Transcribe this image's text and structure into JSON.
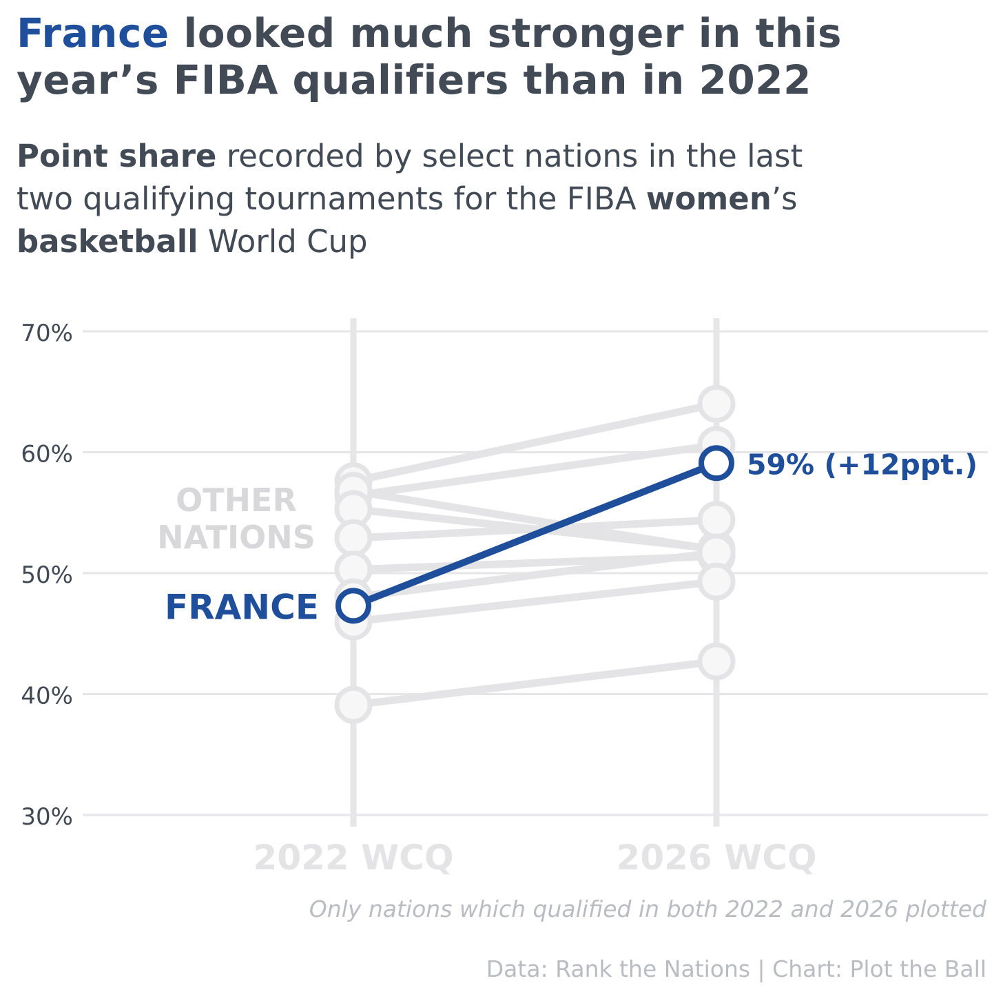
{
  "header": {
    "title_highlight": "France",
    "title_rest_1": " looked much stronger in this",
    "title_rest_2": "year’s FIBA qualifiers than in 2022",
    "subtitle_bold_1": "Point share",
    "subtitle_text_1": " recorded by select nations in the last",
    "subtitle_text_2": "two qualifying tournaments for the FIBA ",
    "subtitle_bold_2": "women",
    "subtitle_text_3": "’s",
    "subtitle_bold_3": "basketball",
    "subtitle_text_4": " World Cup"
  },
  "colors": {
    "highlight": "#1f4e9a",
    "other": "#e4e4e6",
    "grid": "#e6e6e8",
    "text": "#424a55",
    "muted": "#b9bcc1",
    "marker_fill": "#f7f7f8"
  },
  "chart_data": {
    "type": "slope",
    "categories": [
      "2022 WCQ",
      "2026 WCQ"
    ],
    "y_unit": "%",
    "ylim": [
      30,
      70
    ],
    "yticks": [
      30,
      40,
      50,
      60,
      70
    ],
    "ytick_labels": [
      "30%",
      "40%",
      "50%",
      "60%",
      "70%"
    ],
    "grid": true,
    "highlight_series": {
      "name": "FRANCE",
      "values": [
        47.3,
        59.1
      ],
      "end_label": "59% (+12ppt.)"
    },
    "other_label": "OTHER NATIONS",
    "other_series": [
      {
        "values": [
          57.6,
          64.0
        ]
      },
      {
        "values": [
          56.4,
          60.6
        ]
      },
      {
        "values": [
          56.8,
          51.9
        ]
      },
      {
        "values": [
          55.3,
          52.0
        ]
      },
      {
        "values": [
          52.9,
          54.4
        ]
      },
      {
        "values": [
          50.3,
          51.4
        ]
      },
      {
        "values": [
          48.0,
          51.7
        ]
      },
      {
        "values": [
          46.0,
          49.3
        ]
      },
      {
        "values": [
          39.1,
          42.7
        ]
      }
    ]
  },
  "footer": {
    "note": "Only nations which qualified in both 2022 and 2026 plotted",
    "source": "Data: Rank the Nations | Chart: Plot the Ball"
  }
}
